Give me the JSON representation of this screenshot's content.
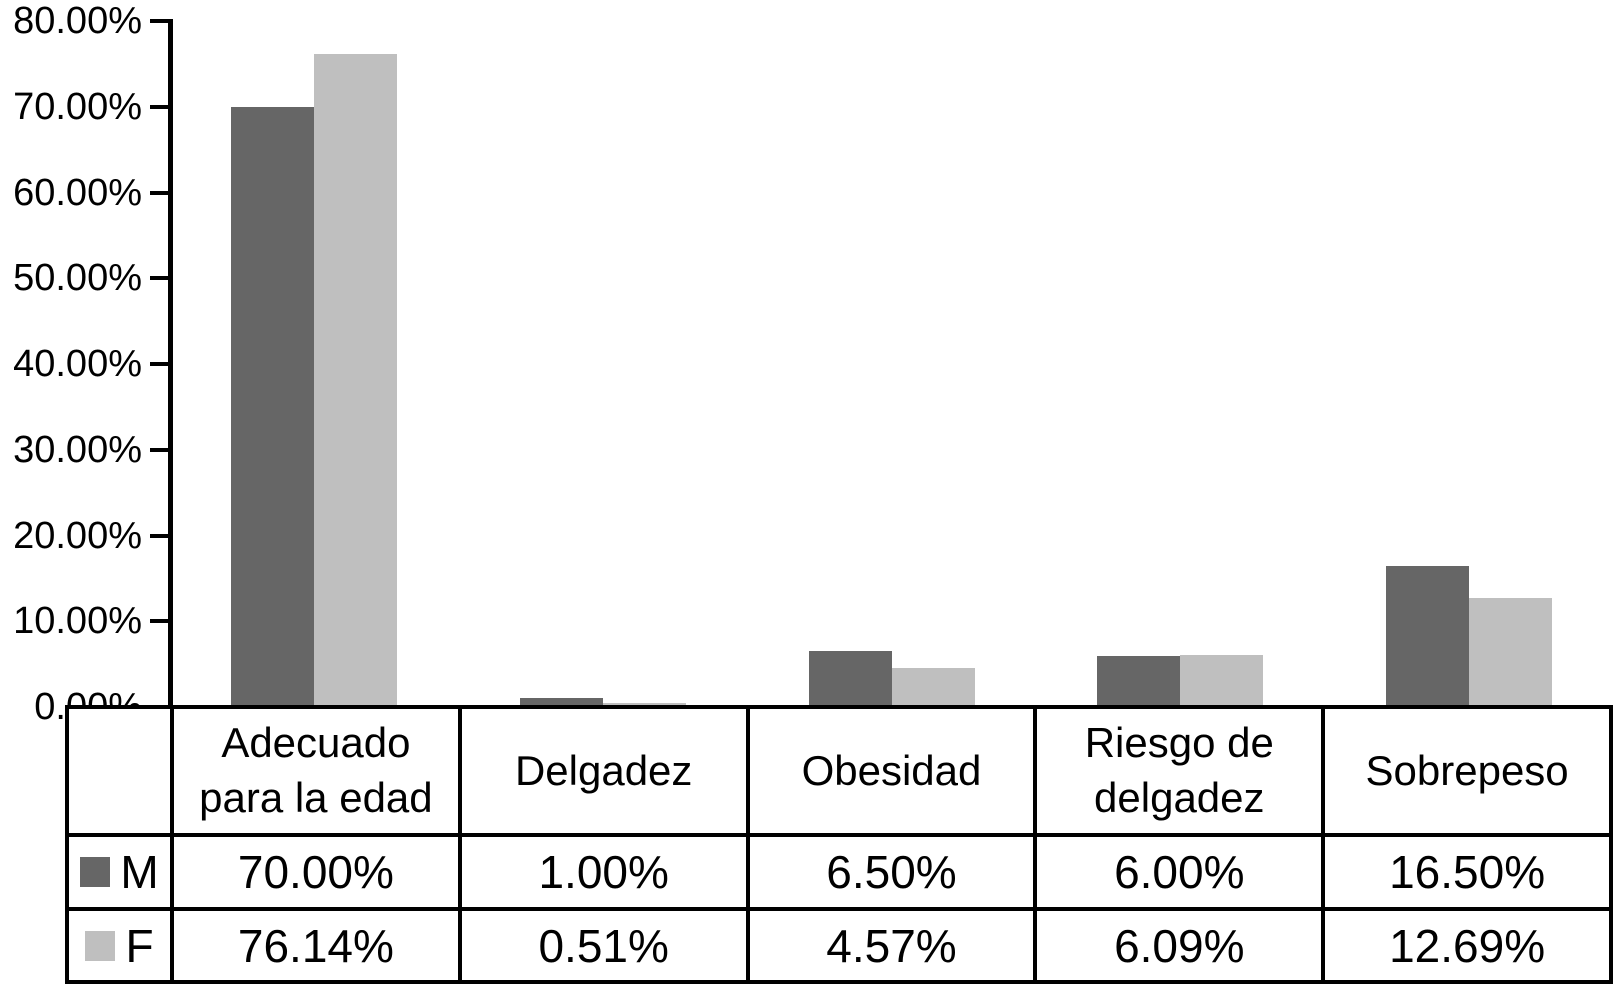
{
  "chart_data": {
    "type": "bar",
    "title": "",
    "xlabel": "",
    "ylabel": "",
    "grid": false,
    "legend_position": "table-left",
    "categories": [
      "Adecuado para la edad",
      "Delgadez",
      "Obesidad",
      "Riesgo de delgadez",
      "Sobrepeso"
    ],
    "series": [
      {
        "name": "M",
        "color": "#666666",
        "values": [
          70.0,
          1.0,
          6.5,
          6.0,
          16.5
        ],
        "labels": [
          "70.00%",
          "1.00%",
          "6.50%",
          "6.00%",
          "16.50%"
        ]
      },
      {
        "name": "F",
        "color": "#BFBFBF",
        "values": [
          76.14,
          0.51,
          4.57,
          6.09,
          12.69
        ],
        "labels": [
          "76.14%",
          "0.51%",
          "4.57%",
          "6.09%",
          "12.69%"
        ]
      }
    ],
    "y_axis": {
      "min": 0,
      "max": 80,
      "step": 10,
      "tick_labels": [
        "0.00%",
        "10.00%",
        "20.00%",
        "30.00%",
        "40.00%",
        "50.00%",
        "60.00%",
        "70.00%",
        "80.00%"
      ]
    }
  },
  "colors": {
    "series_m": "#666666",
    "series_f": "#BFBFBF",
    "axis": "#000000",
    "text": "#000000",
    "background": "#FFFFFF"
  }
}
